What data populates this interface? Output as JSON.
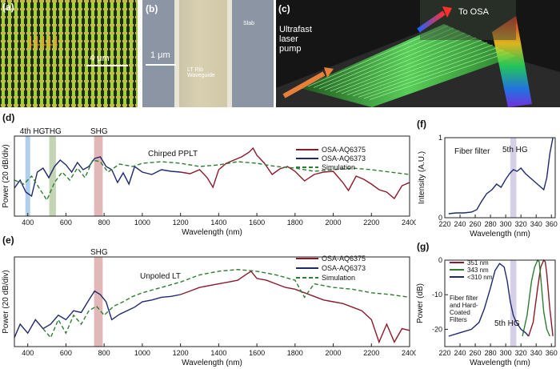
{
  "panel_labels": {
    "a": "(a)",
    "b": "(b)",
    "c": "(c)",
    "d": "(d)",
    "e": "(e)",
    "f": "(f)",
    "g": "(g)"
  },
  "panel_a": {
    "scale_label": "4 μm",
    "bg": "#1d2d0e",
    "stripe": "#9fd23a"
  },
  "panel_b": {
    "scale_label": "1 μm",
    "waveguide_label": "LT Rib\nWaveguide",
    "slab_label": "Slab"
  },
  "panel_c": {
    "pump_label": "Ultrafast\nlaser\npump",
    "osa_label": "To OSA"
  },
  "colors": {
    "osa6375": "#8b1a2b",
    "osa6373": "#1f2a6e",
    "sim": "#2e7d32",
    "hg4": "#6fa8dc",
    "thg": "#93b37a",
    "shg": "#c97b7b",
    "hg5": "#b4a7d6"
  },
  "chart_data": [
    {
      "id": "d",
      "type": "line",
      "title": "Chirped PPLT",
      "xlabel": "Wavelength (nm)",
      "ylabel": "Power (20 dB/div)",
      "xlim": [
        330,
        2400
      ],
      "xticks": [
        400,
        600,
        800,
        1000,
        1200,
        1400,
        1600,
        1800,
        2000,
        2200,
        2400
      ],
      "bands": [
        {
          "label": "4th HG",
          "center": 400,
          "width": 25,
          "color": "#6fa8dc"
        },
        {
          "label": "THG",
          "center": 530,
          "width": 35,
          "color": "#93b37a"
        },
        {
          "label": "SHG",
          "center": 770,
          "width": 45,
          "color": "#c97b7b"
        }
      ],
      "legend": [
        "OSA-AQ6375",
        "OSA-AQ6373",
        "Simulation"
      ],
      "series": [
        {
          "name": "OSA-AQ6375",
          "x": [
            1200,
            1250,
            1300,
            1340,
            1370,
            1400,
            1440,
            1480,
            1520,
            1560,
            1580,
            1600,
            1640,
            1680,
            1720,
            1760,
            1800,
            1850,
            1900,
            1950,
            2000,
            2050,
            2080,
            2120,
            2160,
            2200,
            2240,
            2280,
            2320,
            2360,
            2400
          ],
          "y": [
            0.55,
            0.53,
            0.58,
            0.48,
            0.36,
            0.58,
            0.66,
            0.7,
            0.74,
            0.8,
            0.85,
            0.76,
            0.66,
            0.52,
            0.59,
            0.62,
            0.56,
            0.44,
            0.52,
            0.55,
            0.56,
            0.42,
            0.32,
            0.5,
            0.46,
            0.4,
            0.33,
            0.3,
            0.22,
            0.38,
            0.42
          ]
        },
        {
          "name": "OSA-AQ6373",
          "x": [
            330,
            360,
            390,
            420,
            450,
            480,
            510,
            540,
            570,
            600,
            630,
            660,
            690,
            720,
            750,
            780,
            810,
            840,
            870,
            900,
            930,
            960,
            1000,
            1050,
            1100,
            1150,
            1200
          ],
          "y": [
            0.35,
            0.45,
            0.3,
            0.25,
            0.55,
            0.6,
            0.48,
            0.62,
            0.7,
            0.64,
            0.55,
            0.67,
            0.58,
            0.62,
            0.72,
            0.74,
            0.62,
            0.58,
            0.42,
            0.54,
            0.4,
            0.62,
            0.55,
            0.52,
            0.58,
            0.56,
            0.55
          ]
        },
        {
          "name": "Simulation",
          "x": [
            330,
            380,
            420,
            460,
            500,
            540,
            580,
            620,
            660,
            700,
            740,
            780,
            820,
            880,
            950,
            1000,
            1100,
            1200,
            1300,
            1400,
            1500,
            1600,
            1700,
            1800,
            1900,
            2000,
            2100,
            2200,
            2300,
            2400
          ],
          "y": [
            0.45,
            0.4,
            0.5,
            0.35,
            0.2,
            0.42,
            0.55,
            0.45,
            0.6,
            0.48,
            0.7,
            0.68,
            0.55,
            0.65,
            0.62,
            0.66,
            0.68,
            0.66,
            0.62,
            0.64,
            0.68,
            0.66,
            0.62,
            0.6,
            0.56,
            0.58,
            0.6,
            0.58,
            0.55,
            0.52
          ]
        }
      ]
    },
    {
      "id": "e",
      "type": "line",
      "title": "Unpoled LT",
      "xlabel": "Wavelength (nm)",
      "ylabel": "Power (20 dB/div)",
      "xlim": [
        330,
        2400
      ],
      "xticks": [
        400,
        600,
        800,
        1000,
        1200,
        1400,
        1600,
        1800,
        2000,
        2200,
        2400
      ],
      "bands": [
        {
          "label": "SHG",
          "center": 770,
          "width": 45,
          "color": "#c97b7b"
        }
      ],
      "legend": [
        "OSA-AQ6375",
        "OSA-AQ6373",
        "Simulation"
      ],
      "series": [
        {
          "name": "OSA-AQ6375",
          "x": [
            1200,
            1250,
            1300,
            1350,
            1400,
            1450,
            1500,
            1540,
            1570,
            1600,
            1650,
            1700,
            1750,
            1800,
            1850,
            1900,
            1950,
            2000,
            2050,
            2100,
            2150,
            2200,
            2240,
            2280,
            2320,
            2360,
            2400
          ],
          "y": [
            0.58,
            0.62,
            0.66,
            0.68,
            0.7,
            0.72,
            0.74,
            0.8,
            0.84,
            0.76,
            0.74,
            0.7,
            0.66,
            0.64,
            0.6,
            0.56,
            0.52,
            0.5,
            0.48,
            0.44,
            0.4,
            0.3,
            0.05,
            0.25,
            0.05,
            0.2,
            0.18
          ]
        },
        {
          "name": "OSA-AQ6373",
          "x": [
            330,
            360,
            400,
            440,
            480,
            520,
            560,
            600,
            640,
            680,
            720,
            750,
            780,
            810,
            840,
            880,
            920,
            960,
            1000,
            1050,
            1100,
            1150,
            1200
          ],
          "y": [
            0.1,
            0.25,
            0.15,
            0.3,
            0.2,
            0.25,
            0.35,
            0.3,
            0.4,
            0.38,
            0.52,
            0.62,
            0.58,
            0.5,
            0.3,
            0.36,
            0.4,
            0.44,
            0.5,
            0.52,
            0.55,
            0.56,
            0.58
          ]
        },
        {
          "name": "Simulation",
          "x": [
            480,
            520,
            560,
            600,
            640,
            680,
            720,
            760,
            800,
            850,
            900,
            950,
            1000,
            1100,
            1200,
            1300,
            1400,
            1500,
            1600,
            1700,
            1800,
            1850,
            1900,
            2000,
            2100,
            2200,
            2300,
            2400
          ],
          "y": [
            0.2,
            0.1,
            0.3,
            0.15,
            0.35,
            0.25,
            0.4,
            0.45,
            0.35,
            0.45,
            0.5,
            0.56,
            0.6,
            0.66,
            0.72,
            0.8,
            0.84,
            0.86,
            0.84,
            0.8,
            0.74,
            0.55,
            0.7,
            0.66,
            0.64,
            0.6,
            0.58,
            0.55
          ]
        }
      ]
    },
    {
      "id": "f",
      "type": "line",
      "title": "Fiber filter",
      "band_label": "5th HG",
      "xlabel": "Wavelength (nm)",
      "ylabel": "Intensity (A.U.)",
      "xlim": [
        220,
        365
      ],
      "ylim": [
        0,
        1
      ],
      "xticks": [
        220,
        240,
        260,
        280,
        300,
        320,
        340,
        360
      ],
      "yticks": [
        0,
        1
      ],
      "bands": [
        {
          "center": 310,
          "width": 8,
          "color": "#b4a7d6"
        }
      ],
      "series": [
        {
          "name": "Fiber filter",
          "x": [
            225,
            235,
            245,
            255,
            262,
            268,
            275,
            282,
            288,
            294,
            300,
            305,
            310,
            315,
            320,
            326,
            332,
            338,
            344,
            350,
            354,
            358,
            362
          ],
          "y": [
            0.05,
            0.06,
            0.06,
            0.07,
            0.1,
            0.2,
            0.3,
            0.35,
            0.42,
            0.38,
            0.48,
            0.55,
            0.6,
            0.58,
            0.62,
            0.55,
            0.5,
            0.45,
            0.4,
            0.35,
            0.5,
            0.8,
            1.0
          ]
        }
      ]
    },
    {
      "id": "g",
      "type": "line",
      "title": "Fiber filter\nand Hard-\nCoated\nFilters",
      "band_label": "5th HG",
      "xlabel": "Wavelength (nm)",
      "ylabel": "Power (dB)",
      "xlim": [
        220,
        365
      ],
      "ylim": [
        -25,
        0
      ],
      "xticks": [
        220,
        240,
        260,
        280,
        300,
        320,
        340,
        360
      ],
      "yticks": [
        0,
        -10,
        -20
      ],
      "bands": [
        {
          "center": 310,
          "width": 8,
          "color": "#b4a7d6"
        }
      ],
      "legend": [
        "351 nm",
        "343 nm",
        "<310 nm"
      ],
      "series": [
        {
          "name": "351 nm",
          "x": [
            330,
            336,
            342,
            346,
            350,
            352,
            354,
            358,
            362
          ],
          "y": [
            -22,
            -18,
            -8,
            -2,
            0,
            -0.5,
            -4,
            -14,
            -22
          ]
        },
        {
          "name": "343 nm",
          "x": [
            322,
            328,
            334,
            338,
            342,
            344,
            346,
            350,
            354,
            358
          ],
          "y": [
            -22,
            -16,
            -6,
            -2,
            0,
            -0.5,
            -5,
            -15,
            -20,
            -22
          ]
        },
        {
          "name": "<310 nm",
          "x": [
            225,
            240,
            255,
            265,
            272,
            280,
            286,
            292,
            298,
            302,
            306,
            310,
            314,
            320,
            326,
            330
          ],
          "y": [
            -22,
            -21,
            -20,
            -18,
            -14,
            -8,
            -3,
            -1,
            -2,
            -6,
            -12,
            -16,
            -18,
            -20,
            -21,
            -22
          ]
        }
      ]
    }
  ]
}
